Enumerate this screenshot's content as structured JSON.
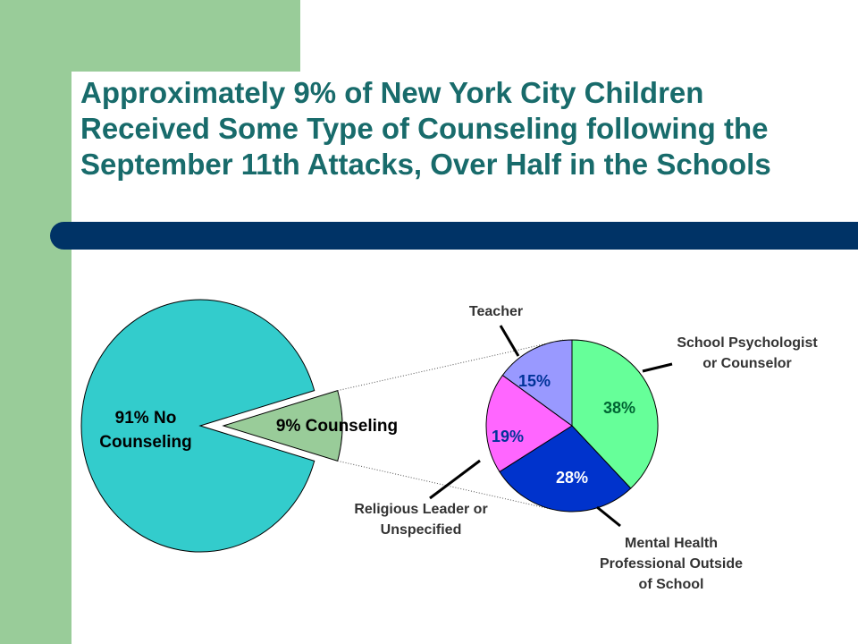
{
  "slide": {
    "title": "Approximately 9% of New York City Children Received Some Type of Counseling following the September 11th Attacks, Over Half in the Schools"
  },
  "colors": {
    "band": "#99cc99",
    "title_text": "#186b6b",
    "title_bar": "#003366"
  },
  "chart_data": [
    {
      "type": "pie",
      "slices": [
        {
          "label_lines": [
            "91% No",
            "Counseling"
          ],
          "value": 91,
          "color": "#33cccc"
        },
        {
          "label_lines": [
            "9% Counseling"
          ],
          "value": 9,
          "color": "#99cc99",
          "exploded": true
        }
      ]
    },
    {
      "type": "pie",
      "slices": [
        {
          "name_lines": [
            "School Psychologist",
            "or Counselor"
          ],
          "value": 38,
          "value_label": "38%",
          "color": "#66ff99"
        },
        {
          "name_lines": [
            "Mental Health",
            "Professional Outside",
            "of School"
          ],
          "value": 28,
          "value_label": "28%",
          "color": "#0033cc"
        },
        {
          "name_lines": [
            "Religious Leader or",
            "Unspecified"
          ],
          "value": 19,
          "value_label": "19%",
          "color": "#ff66ff"
        },
        {
          "name_lines": [
            "Teacher"
          ],
          "value": 15,
          "value_label": "15%",
          "color": "#9999ff"
        }
      ]
    }
  ]
}
